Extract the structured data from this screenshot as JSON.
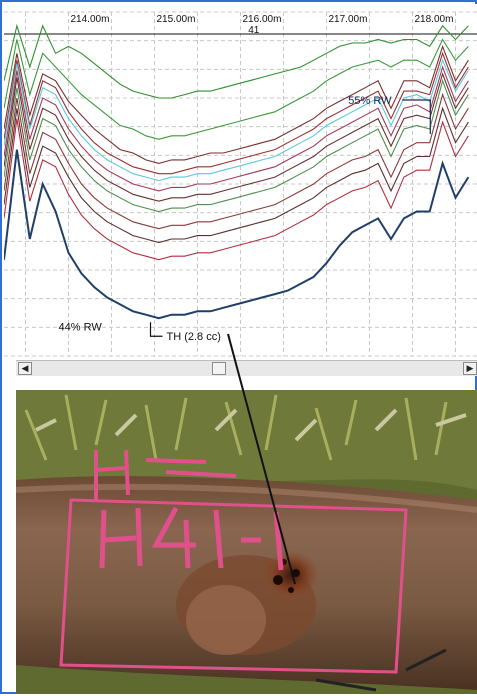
{
  "chart_data": {
    "type": "line",
    "x_ticks": [
      "214.00m",
      "215.00m",
      "216.00m",
      "217.00m",
      "218.00m"
    ],
    "x_tick_values": [
      214,
      215,
      216,
      217,
      218
    ],
    "joint_label": "41",
    "xlim": [
      213.25,
      218.75
    ],
    "ylim": [
      0,
      100
    ],
    "grid": true,
    "x": [
      213.25,
      213.4,
      213.55,
      213.7,
      213.85,
      214.0,
      214.15,
      214.3,
      214.45,
      214.6,
      214.75,
      214.9,
      215.05,
      215.2,
      215.35,
      215.5,
      215.65,
      215.8,
      215.95,
      216.1,
      216.25,
      216.4,
      216.55,
      216.7,
      216.85,
      217.0,
      217.15,
      217.3,
      217.45,
      217.6,
      217.75,
      217.9,
      218.05,
      218.2,
      218.35,
      218.5,
      218.65
    ],
    "series": [
      {
        "color": "#2f8f2f",
        "values": [
          80,
          96,
          84,
          96,
          88,
          90,
          88,
          85,
          82,
          79,
          77,
          76,
          75,
          75,
          76,
          77,
          77,
          78,
          79,
          80,
          81,
          82,
          83,
          84,
          86,
          88,
          90,
          91,
          91,
          92,
          91,
          92,
          92,
          90,
          96,
          92,
          96
        ]
      },
      {
        "color": "#3a9a3a",
        "values": [
          72,
          92,
          76,
          88,
          84,
          80,
          76,
          73,
          70,
          67,
          66,
          64,
          63,
          64,
          64,
          65,
          66,
          67,
          68,
          69,
          70,
          71,
          73,
          75,
          77,
          80,
          82,
          84,
          85,
          86,
          84,
          86,
          86,
          84,
          92,
          86,
          90
        ]
      },
      {
        "color": "#7a2f2f",
        "values": [
          66,
          88,
          70,
          82,
          80,
          74,
          70,
          66,
          63,
          60,
          59,
          57,
          56,
          57,
          57,
          58,
          59,
          59,
          60,
          61,
          62,
          63,
          65,
          67,
          69,
          72,
          74,
          76,
          78,
          80,
          72,
          80,
          80,
          78,
          90,
          80,
          86
        ]
      },
      {
        "color": "#9a3030",
        "values": [
          63,
          86,
          67,
          80,
          78,
          71,
          66,
          62,
          59,
          57,
          55,
          54,
          53,
          53,
          54,
          55,
          55,
          56,
          57,
          58,
          59,
          60,
          62,
          64,
          66,
          69,
          71,
          73,
          75,
          77,
          69,
          77,
          77,
          76,
          88,
          78,
          84
        ]
      },
      {
        "color": "#5bc8dc",
        "values": [
          61,
          85,
          66,
          78,
          76,
          69,
          64,
          60,
          57,
          55,
          53,
          52,
          51,
          52,
          52,
          53,
          53,
          54,
          55,
          56,
          57,
          58,
          60,
          62,
          64,
          67,
          69,
          71,
          73,
          75,
          67,
          75,
          76,
          74,
          86,
          77,
          83
        ]
      },
      {
        "color": "#a23a5a",
        "values": [
          58,
          83,
          63,
          75,
          73,
          66,
          61,
          57,
          54,
          52,
          50,
          49,
          48,
          49,
          49,
          50,
          50,
          51,
          52,
          53,
          54,
          55,
          57,
          59,
          61,
          64,
          66,
          68,
          70,
          72,
          64,
          72,
          73,
          71,
          84,
          74,
          80
        ]
      },
      {
        "color": "#6a2f2f",
        "values": [
          55,
          81,
          60,
          72,
          70,
          63,
          58,
          54,
          51,
          49,
          47,
          46,
          45,
          46,
          46,
          47,
          47,
          48,
          49,
          50,
          51,
          52,
          54,
          56,
          58,
          61,
          63,
          65,
          67,
          69,
          61,
          69,
          70,
          69,
          82,
          72,
          78
        ]
      },
      {
        "color": "#4f8f4f",
        "values": [
          52,
          78,
          57,
          69,
          67,
          60,
          55,
          51,
          48,
          46,
          44,
          43,
          42,
          43,
          43,
          44,
          44,
          45,
          46,
          47,
          48,
          49,
          51,
          53,
          55,
          58,
          60,
          62,
          64,
          66,
          58,
          66,
          67,
          66,
          80,
          70,
          76
        ]
      },
      {
        "color": "#8a3a3a",
        "values": [
          48,
          75,
          53,
          65,
          63,
          56,
          50,
          46,
          43,
          41,
          39,
          38,
          37,
          38,
          38,
          39,
          39,
          40,
          41,
          42,
          43,
          44,
          46,
          48,
          50,
          53,
          55,
          57,
          58,
          60,
          52,
          60,
          62,
          62,
          76,
          66,
          72
        ]
      },
      {
        "color": "#5a2f2f",
        "values": [
          44,
          72,
          49,
          61,
          59,
          52,
          46,
          42,
          39,
          37,
          35,
          34,
          33,
          34,
          34,
          35,
          35,
          36,
          37,
          38,
          39,
          40,
          42,
          44,
          46,
          49,
          51,
          53,
          54,
          56,
          48,
          56,
          58,
          58,
          72,
          62,
          68
        ]
      },
      {
        "color": "#b03040",
        "values": [
          40,
          69,
          45,
          57,
          55,
          47,
          41,
          37,
          34,
          32,
          30,
          29,
          28,
          29,
          29,
          30,
          30,
          31,
          32,
          33,
          34,
          35,
          37,
          39,
          41,
          44,
          46,
          48,
          49,
          51,
          43,
          52,
          54,
          54,
          68,
          58,
          64
        ]
      },
      {
        "color": "#1f3f6a",
        "values": [
          28,
          60,
          34,
          50,
          42,
          30,
          24,
          20,
          17,
          15,
          13,
          12,
          11,
          12,
          12,
          13,
          13,
          14,
          15,
          16,
          17,
          18,
          19,
          21,
          23,
          27,
          32,
          36,
          38,
          40,
          34,
          40,
          42,
          42,
          56,
          46,
          52
        ]
      }
    ],
    "annotations": [
      {
        "text": "55% RW",
        "x": 217.3,
        "y": 75
      },
      {
        "text": "44% RW",
        "x": 214.0,
        "y": 12
      },
      {
        "text": "TH (2.8 cc)",
        "x": 215.0,
        "y": 4
      }
    ]
  },
  "photo": {
    "marking": "H41-1",
    "colors": {
      "pipe": "#7a5a40",
      "rust": "#8a4a2a",
      "grass": "#6a7a3a",
      "paint": "#e0508a"
    }
  }
}
